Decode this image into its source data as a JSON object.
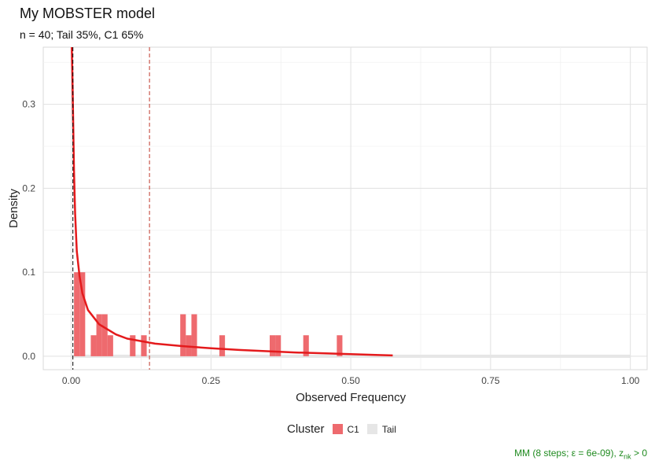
{
  "title": "My MOBSTER model",
  "subtitle": "n = 40; Tail 35%, C1 65%",
  "caption": {
    "prefix": "MM (8 steps; ε = 6e-09), z",
    "subscript": "nk",
    "suffix": " > 0"
  },
  "legend": {
    "title": "Cluster",
    "items": [
      {
        "label": "C1",
        "color": "#EE6A6E"
      },
      {
        "label": "Tail",
        "color": "#E6E6E6"
      }
    ]
  },
  "chart_data": {
    "type": "bar",
    "xlabel": "Observed Frequency",
    "ylabel": "Density",
    "xlim": [
      -0.05,
      1.03
    ],
    "ylim": [
      -0.016,
      0.368
    ],
    "x_ticks": [
      0.0,
      0.25,
      0.5,
      0.75,
      1.0
    ],
    "x_tick_labels": [
      "0.00",
      "0.25",
      "0.50",
      "0.75",
      "1.00"
    ],
    "y_ticks": [
      0.0,
      0.1,
      0.2,
      0.3
    ],
    "y_tick_labels": [
      "0.0",
      "0.1",
      "0.2",
      "0.3"
    ],
    "grid": true,
    "bin_width": 0.01,
    "histogram": {
      "series": "C1",
      "color": "#EE6A6E",
      "bins": [
        {
          "x": 0.01,
          "density": 0.1
        },
        {
          "x": 0.02,
          "density": 0.1
        },
        {
          "x": 0.04,
          "density": 0.025
        },
        {
          "x": 0.05,
          "density": 0.05
        },
        {
          "x": 0.06,
          "density": 0.05
        },
        {
          "x": 0.07,
          "density": 0.025
        },
        {
          "x": 0.11,
          "density": 0.025
        },
        {
          "x": 0.13,
          "density": 0.025
        },
        {
          "x": 0.2,
          "density": 0.05
        },
        {
          "x": 0.21,
          "density": 0.025
        },
        {
          "x": 0.22,
          "density": 0.05
        },
        {
          "x": 0.27,
          "density": 0.025
        },
        {
          "x": 0.36,
          "density": 0.025
        },
        {
          "x": 0.37,
          "density": 0.025
        },
        {
          "x": 0.42,
          "density": 0.025
        },
        {
          "x": 0.48,
          "density": 0.025
        }
      ]
    },
    "tail_band": {
      "series": "Tail",
      "color": "#E6E6E6",
      "x": [
        0.0,
        1.0
      ],
      "y": 0.0
    },
    "density_curve": {
      "series": "C1",
      "color": "#E41A1C",
      "x": [
        0.001,
        0.002,
        0.003,
        0.005,
        0.007,
        0.01,
        0.015,
        0.02,
        0.03,
        0.05,
        0.08,
        0.1,
        0.15,
        0.2,
        0.25,
        0.3,
        0.35,
        0.4,
        0.45,
        0.5,
        0.55,
        0.575
      ],
      "y": [
        0.37,
        0.34,
        0.3,
        0.22,
        0.17,
        0.125,
        0.095,
        0.075,
        0.055,
        0.038,
        0.026,
        0.021,
        0.015,
        0.012,
        0.0095,
        0.0075,
        0.006,
        0.0045,
        0.0035,
        0.0025,
        0.0015,
        0.001
      ]
    },
    "vlines": [
      {
        "x": 0.003,
        "color": "#000000",
        "style": "dashed"
      },
      {
        "x": 0.14,
        "color": "#C0392B",
        "style": "dashed"
      }
    ]
  }
}
